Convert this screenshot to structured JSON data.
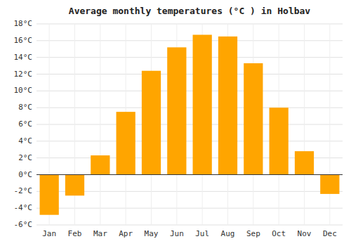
{
  "chart_data": {
    "type": "bar",
    "title": "Average monthly temperatures (°C ) in Holbav",
    "categories": [
      "Jan",
      "Feb",
      "Mar",
      "Apr",
      "May",
      "Jun",
      "Jul",
      "Aug",
      "Sep",
      "Oct",
      "Nov",
      "Dec"
    ],
    "values": [
      -4.8,
      -2.5,
      2.3,
      7.5,
      12.4,
      15.2,
      16.7,
      16.5,
      13.3,
      8.0,
      2.8,
      -2.3
    ],
    "color": "#FFA500",
    "ylim": [
      -6,
      18
    ],
    "yticks": [
      {
        "value": -6,
        "label": "-6°C"
      },
      {
        "value": -4,
        "label": "-4°C"
      },
      {
        "value": -2,
        "label": "-2°C"
      },
      {
        "value": 0,
        "label": "0°C"
      },
      {
        "value": 2,
        "label": "2°C"
      },
      {
        "value": 4,
        "label": "4°C"
      },
      {
        "value": 6,
        "label": "6°C"
      },
      {
        "value": 8,
        "label": "8°C"
      },
      {
        "value": 10,
        "label": "10°C"
      },
      {
        "value": 12,
        "label": "12°C"
      },
      {
        "value": 14,
        "label": "14°C"
      },
      {
        "value": 16,
        "label": "16°C"
      },
      {
        "value": 18,
        "label": "18°C"
      }
    ],
    "grid": true
  }
}
